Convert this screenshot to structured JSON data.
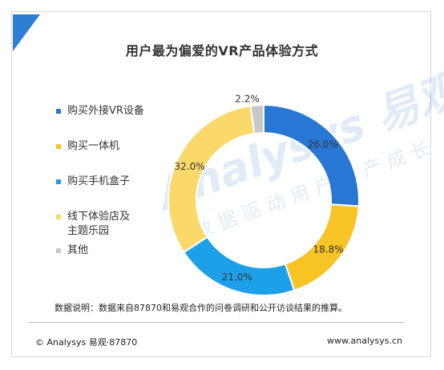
{
  "title": "用户最为偏爱的VR产品体验方式",
  "note": "数据说明：数据来自87870和易观合作的问卷调研和公开访谈结果的推算。",
  "footer": {
    "left": "© Analysys 易观·87870",
    "right": "www.analysys.cn"
  },
  "watermark": {
    "brand": "Analysys 易观",
    "slogan": "数据驱动用户资产成长"
  },
  "colors": {
    "blue": "#2877d4",
    "yellow": "#f7c325",
    "skyblue": "#1ea0e8",
    "paleyellow": "#fad86a",
    "gray": "#c8c8c8",
    "accent": "#2d7fd6"
  },
  "chart_data": {
    "type": "pie",
    "donut": true,
    "title": "用户最为偏爱的VR产品体验方式",
    "legend_position": "left",
    "slices": [
      {
        "label": "购买外接VR设备",
        "value": 26.0,
        "display": "26.0%",
        "color": "#2877d4"
      },
      {
        "label": "购买一体机",
        "value": 18.8,
        "display": "18.8%",
        "color": "#f7c325"
      },
      {
        "label": "购买手机盒子",
        "value": 21.0,
        "display": "21.0%",
        "color": "#1ea0e8"
      },
      {
        "label": "线下体验店及主题乐园",
        "value": 32.0,
        "display": "32.0%",
        "color": "#fad86a"
      },
      {
        "label": "其他",
        "value": 2.2,
        "display": "2.2%",
        "color": "#c8c8c8"
      }
    ]
  }
}
